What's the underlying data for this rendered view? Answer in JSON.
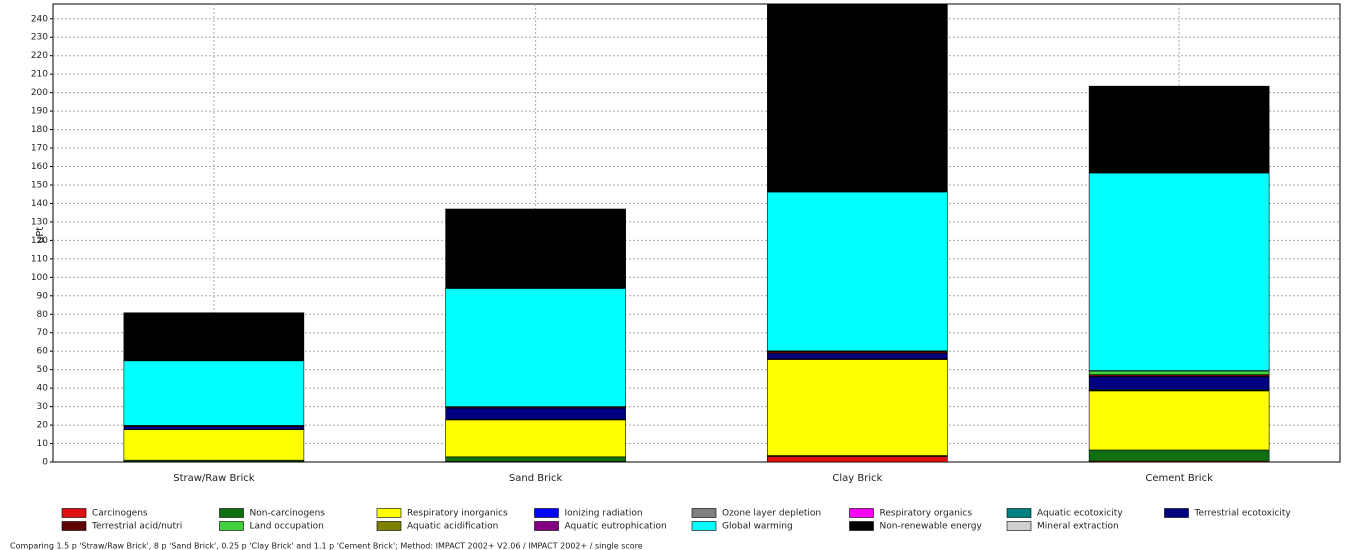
{
  "chart_data": {
    "type": "bar",
    "stacked": true,
    "y_label": "µPt",
    "categories": [
      "Straw/Raw Brick",
      "Sand Brick",
      "Clay Brick",
      "Cement Brick"
    ],
    "series": [
      {
        "name": "Carcinogens",
        "color": "#e01010",
        "values": [
          0.3,
          0.3,
          3,
          0.5
        ]
      },
      {
        "name": "Non-carcinogens",
        "color": "#107010",
        "values": [
          0.7,
          2.5,
          0.5,
          6
        ]
      },
      {
        "name": "Respiratory inorganics",
        "color": "#ffff00",
        "values": [
          16.5,
          20,
          52,
          32
        ]
      },
      {
        "name": "Ionizing radiation",
        "color": "#0000ff",
        "values": [
          0.1,
          0.2,
          0.2,
          0.3
        ]
      },
      {
        "name": "Ozone layer depletion",
        "color": "#808080",
        "values": [
          0,
          0,
          0,
          0
        ]
      },
      {
        "name": "Respiratory organics",
        "color": "#ff00ff",
        "values": [
          0,
          0,
          0,
          0
        ]
      },
      {
        "name": "Aquatic ecotoxicity",
        "color": "#008080",
        "values": [
          0.1,
          0.2,
          0.2,
          0.5
        ]
      },
      {
        "name": "Terrestrial ecotoxicity",
        "color": "#000080",
        "values": [
          1.5,
          6,
          3,
          7
        ]
      },
      {
        "name": "Terrestrial acid/nutri",
        "color": "#600000",
        "values": [
          0.4,
          0.5,
          1,
          1
        ]
      },
      {
        "name": "Land occupation",
        "color": "#40d040",
        "values": [
          0.2,
          0.3,
          0.3,
          2
        ]
      },
      {
        "name": "Aquatic acidification",
        "color": "#808000",
        "values": [
          0,
          0,
          0,
          0.2
        ]
      },
      {
        "name": "Aquatic eutrophication",
        "color": "#800080",
        "values": [
          0,
          0,
          0,
          0
        ]
      },
      {
        "name": "Global warming",
        "color": "#00ffff",
        "values": [
          35,
          64,
          86,
          107
        ]
      },
      {
        "name": "Non-renewable energy",
        "color": "#000000",
        "values": [
          26,
          43,
          102,
          47
        ]
      },
      {
        "name": "Mineral extraction",
        "color": "#d0d0d0",
        "values": [
          0,
          0,
          0,
          0
        ]
      }
    ],
    "ylim": [
      0,
      248
    ],
    "yticks": [
      0,
      10,
      20,
      30,
      40,
      50,
      60,
      70,
      80,
      90,
      100,
      110,
      120,
      130,
      140,
      150,
      160,
      170,
      180,
      190,
      200,
      210,
      220,
      230,
      240
    ],
    "grid": true,
    "footnote": "Comparing 1.5 p 'Straw/Raw Brick', 8 p 'Sand Brick', 0.25 p 'Clay Brick' and 1.1 p 'Cement Brick'; Method: IMPACT 2002+ V2.06 / IMPACT 2002+ / single score"
  }
}
